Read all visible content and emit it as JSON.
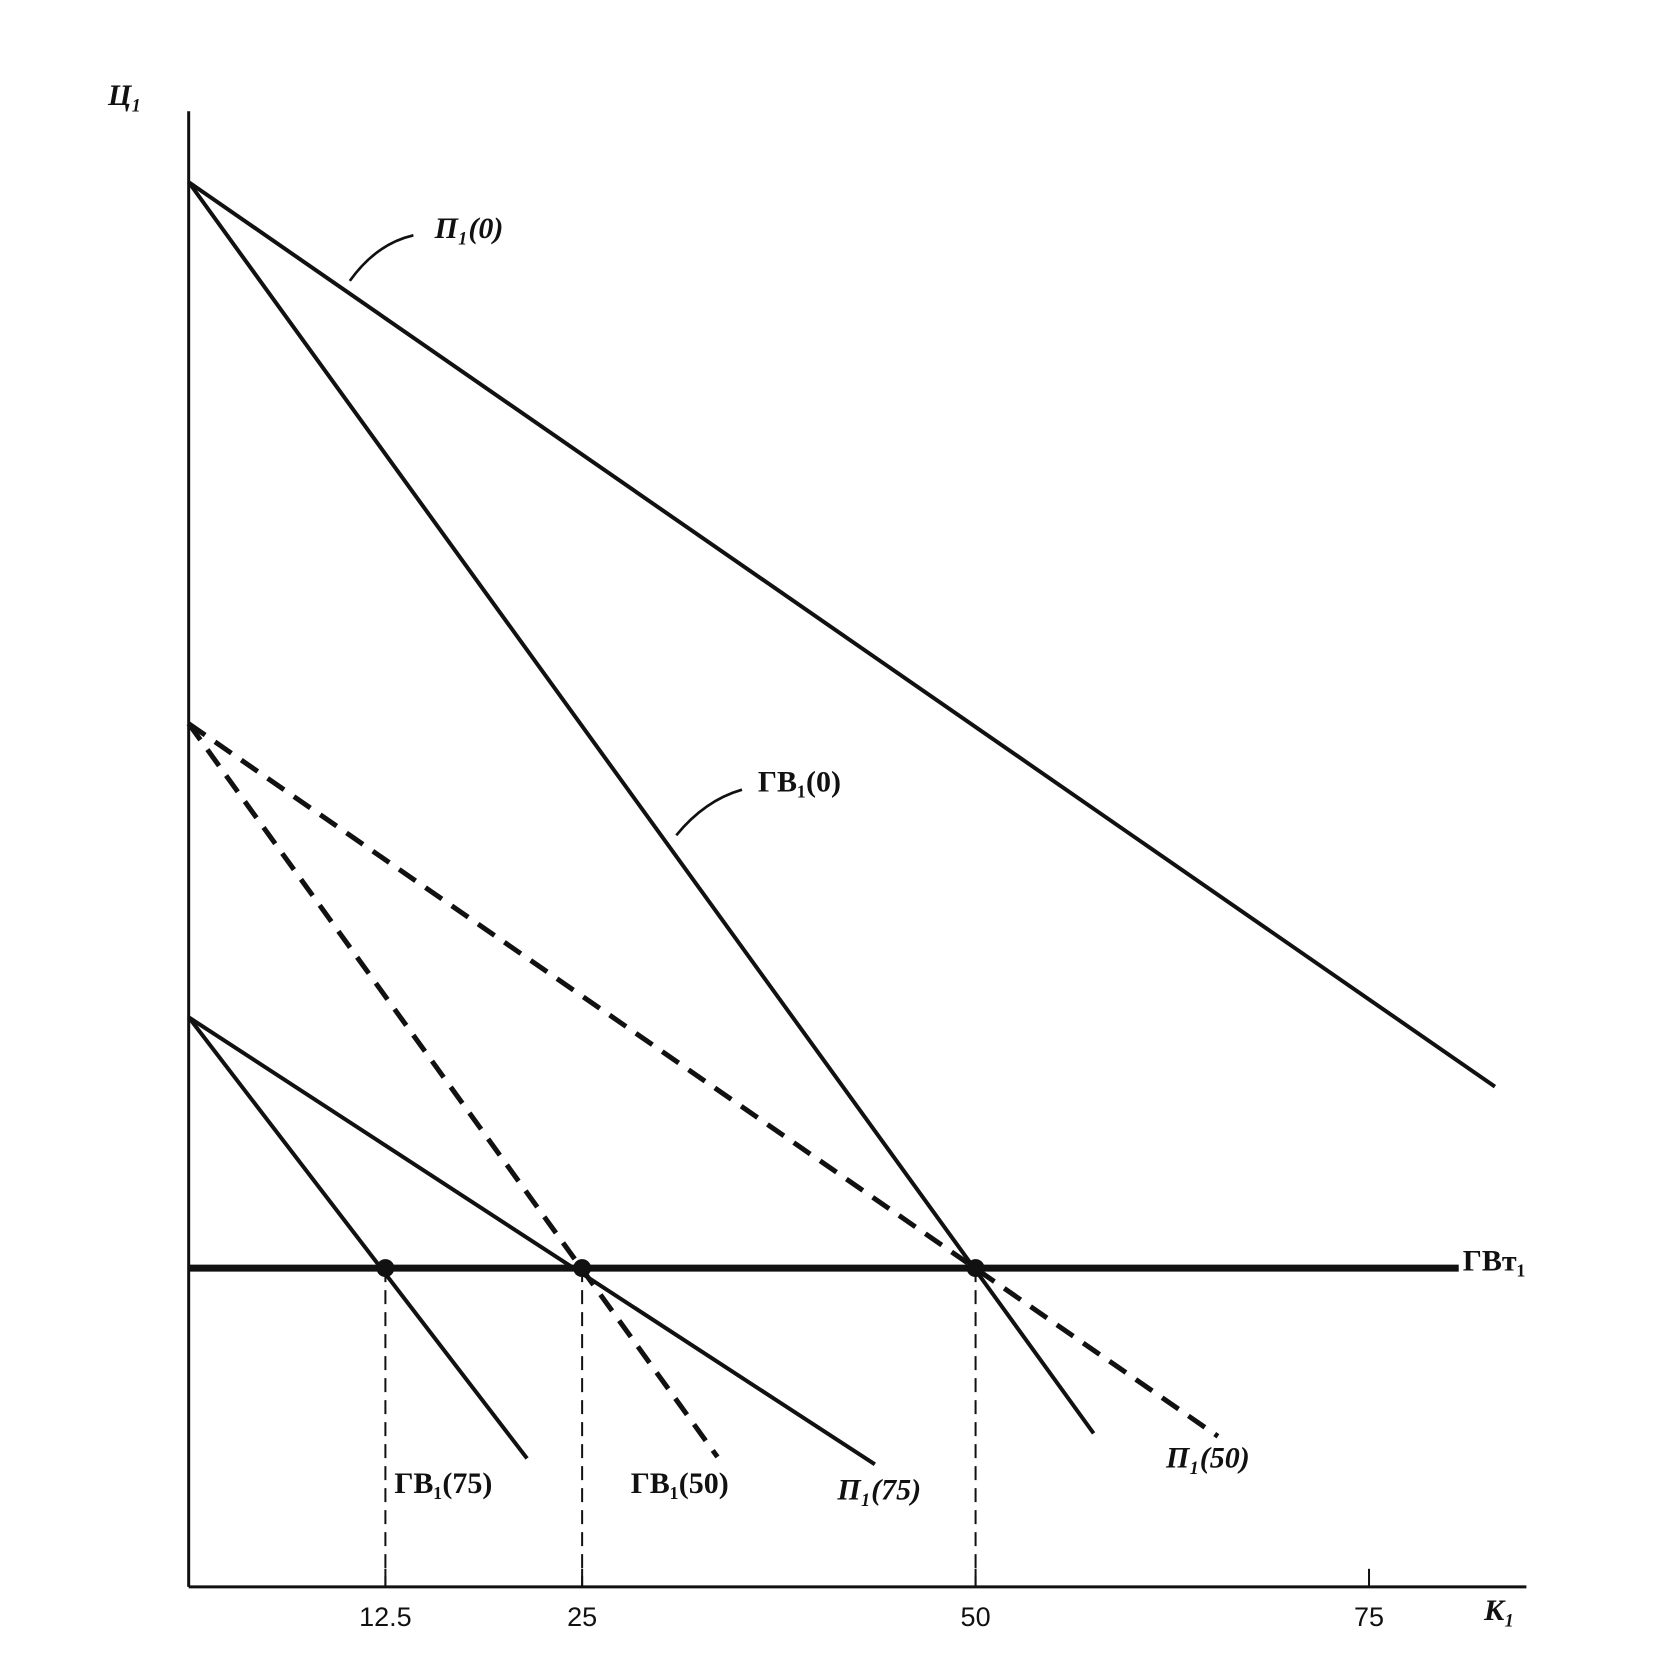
{
  "chart_data": {
    "type": "line",
    "y_label": "Ц₁",
    "x_label": "К₁",
    "xlim": [
      0,
      85
    ],
    "ylim": [
      0,
      100
    ],
    "xticks": [
      12.5,
      25,
      50,
      75
    ],
    "series": [
      {
        "name": "П₁(0)",
        "style": "solid",
        "x": [
          0,
          83
        ],
        "values": [
          95.2,
          33.9
        ]
      },
      {
        "name": "ГВ₁(0)",
        "style": "solid",
        "x": [
          0,
          57.5
        ],
        "values": [
          95.2,
          10.4
        ]
      },
      {
        "name": "П₁(50)",
        "style": "dashed",
        "x": [
          0,
          65.4
        ],
        "values": [
          58.5,
          10.2
        ]
      },
      {
        "name": "ГВ₁(50)",
        "style": "dashed",
        "x": [
          0,
          33.6
        ],
        "values": [
          58.5,
          8.8
        ]
      },
      {
        "name": "П₁(75)",
        "style": "solid",
        "x": [
          0,
          43.6
        ],
        "values": [
          38.6,
          8.3
        ]
      },
      {
        "name": "ГВ₁(75)",
        "style": "solid",
        "x": [
          0,
          21.5
        ],
        "values": [
          38.6,
          8.7
        ]
      },
      {
        "name": "ГВт₁",
        "style": "thick",
        "x": [
          0,
          80.7
        ],
        "values": [
          21.6,
          21.6
        ]
      }
    ],
    "points": {
      "x": [
        12.5,
        25,
        50
      ],
      "values": [
        21.6,
        21.6,
        21.6
      ]
    }
  }
}
